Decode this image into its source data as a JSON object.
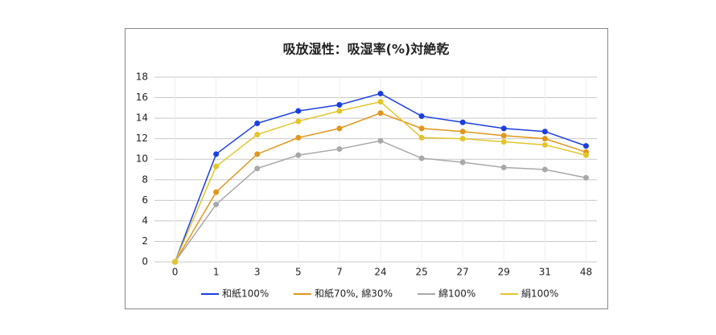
{
  "chart_data": {
    "type": "line",
    "title": "吸放湿性：吸湿率(%)対絶乾",
    "categories": [
      "0",
      "1",
      "3",
      "5",
      "7",
      "24",
      "25",
      "27",
      "29",
      "31",
      "48"
    ],
    "series": [
      {
        "name": "和紙100%",
        "color": "#1a3fe0",
        "values": [
          0,
          10.5,
          13.5,
          14.7,
          15.3,
          16.4,
          14.2,
          13.6,
          13.0,
          12.7,
          11.3
        ]
      },
      {
        "name": "和紙70%, 綿30%",
        "color": "#e0961a",
        "values": [
          0,
          6.8,
          10.5,
          12.1,
          13.0,
          14.5,
          13.0,
          12.7,
          12.3,
          12.0,
          10.7
        ]
      },
      {
        "name": "綿100%",
        "color": "#a8a8a8",
        "values": [
          0,
          5.6,
          9.1,
          10.4,
          11.0,
          11.8,
          10.1,
          9.7,
          9.2,
          9.0,
          8.2
        ]
      },
      {
        "name": "絹100%",
        "color": "#e2c52a",
        "values": [
          0,
          9.3,
          12.4,
          13.7,
          14.7,
          15.6,
          12.1,
          12.0,
          11.7,
          11.4,
          10.4
        ]
      }
    ],
    "ylim": [
      0,
      18
    ],
    "yticks": [
      0,
      2,
      4,
      6,
      8,
      10,
      12,
      14,
      16,
      18
    ],
    "grid": true,
    "legend": "bottom"
  }
}
